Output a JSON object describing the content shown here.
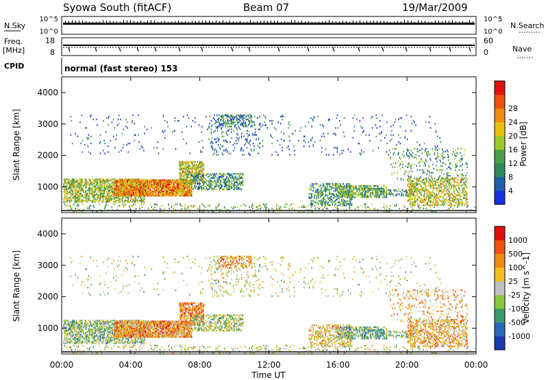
{
  "header": {
    "station": "Syowa South (fitACF)",
    "beam": "Beam 07",
    "date": "19/Mar/2009"
  },
  "top_panels": {
    "nsky_label": "N.Sky",
    "nsearch_label": "N.Search",
    "freq_label_line1": "Freq.",
    "freq_label_line2": "[MHz]",
    "nave_label": "Nave",
    "cpid_label": "CPID",
    "cpid_text": "normal (fast stereo) 153",
    "noise_ticks_left": [
      "10^5",
      "10^0"
    ],
    "noise_ticks_right": [
      "10^5",
      "10^0"
    ],
    "freq_ticks": [
      "18",
      "8"
    ],
    "nave_ticks": [
      "60",
      "0"
    ]
  },
  "chart_data": [
    {
      "type": "heatmap",
      "parameter": "Power",
      "ylabel": "Slant Range [km]",
      "xlabel": "Time UT",
      "x_ticks": [
        "00:00",
        "04:00",
        "08:00",
        "12:00",
        "16:00",
        "20:00",
        "00:00"
      ],
      "x_range_hours": [
        0,
        24
      ],
      "y_ticks": [
        1000,
        2000,
        3000,
        4000
      ],
      "y_range_km": [
        180,
        4500
      ],
      "colorbar": {
        "label": "Power [dB]",
        "ticks": [
          "4",
          "8",
          "12",
          "16",
          "20",
          "24",
          "28"
        ],
        "colors": [
          "#1430e0",
          "#1f5fa8",
          "#2e8a5a",
          "#4aa04a",
          "#9ccc28",
          "#e8c010",
          "#f08c10",
          "#f05010",
          "#e01010"
        ]
      },
      "echo_regions": [
        {
          "t": [
            0.1,
            4.8
          ],
          "r": [
            500,
            1250
          ],
          "dens": 0.55,
          "bias": 0.5
        },
        {
          "t": [
            3.0,
            7.5
          ],
          "r": [
            700,
            1200
          ],
          "dens": 0.85,
          "bias": 0.75
        },
        {
          "t": [
            6.8,
            8.2
          ],
          "r": [
            1100,
            1800
          ],
          "dens": 0.6,
          "bias": 0.55
        },
        {
          "t": [
            7.5,
            10.5
          ],
          "r": [
            900,
            1400
          ],
          "dens": 0.45,
          "bias": 0.3
        },
        {
          "t": [
            8.5,
            11.5
          ],
          "r": [
            2000,
            3300
          ],
          "dens": 0.08,
          "bias": 0.15
        },
        {
          "t": [
            9.0,
            11.0
          ],
          "r": [
            2900,
            3300
          ],
          "dens": 0.35,
          "bias": 0.25
        },
        {
          "t": [
            0.5,
            22.0
          ],
          "r": [
            2000,
            3300
          ],
          "dens": 0.025,
          "bias": 0.1
        },
        {
          "t": [
            14.3,
            16.8
          ],
          "r": [
            400,
            1100
          ],
          "dens": 0.35,
          "bias": 0.3
        },
        {
          "t": [
            16.0,
            18.8
          ],
          "r": [
            650,
            1050
          ],
          "dens": 0.55,
          "bias": 0.4
        },
        {
          "t": [
            18.8,
            20.5
          ],
          "r": [
            700,
            900
          ],
          "dens": 0.35,
          "bias": 0.3
        },
        {
          "t": [
            19.0,
            23.5
          ],
          "r": [
            1200,
            2200
          ],
          "dens": 0.12,
          "bias": 0.3
        },
        {
          "t": [
            20.0,
            23.5
          ],
          "r": [
            400,
            1300
          ],
          "dens": 0.4,
          "bias": 0.55
        },
        {
          "t": [
            0.0,
            24.0
          ],
          "r": [
            200,
            450
          ],
          "dens": 0.12,
          "bias": 0.4
        }
      ]
    },
    {
      "type": "heatmap",
      "parameter": "Velocity",
      "ylabel": "Slant Range [km]",
      "xlabel": "Time UT",
      "x_ticks": [
        "00:00",
        "04:00",
        "08:00",
        "12:00",
        "16:00",
        "20:00",
        "00:00"
      ],
      "x_range_hours": [
        0,
        24
      ],
      "y_ticks": [
        1000,
        2000,
        3000,
        4000
      ],
      "y_range_km": [
        180,
        4500
      ],
      "colorbar": {
        "label": "Velocity [m s^-1]",
        "ticks": [
          "1000",
          "500",
          "100",
          "25",
          "-25",
          "-100",
          "-500",
          "-1000"
        ],
        "colors": [
          "#1a3ab0",
          "#2a6ab8",
          "#3a9a6a",
          "#88c840",
          "#c0c0c0",
          "#f0c020",
          "#f08c10",
          "#f05010",
          "#e01010"
        ]
      },
      "echo_regions": [
        {
          "t": [
            0.1,
            4.8
          ],
          "r": [
            500,
            1250
          ],
          "dens": 0.55,
          "bias": 0.4
        },
        {
          "t": [
            3.0,
            7.5
          ],
          "r": [
            700,
            1200
          ],
          "dens": 0.85,
          "bias": 0.7
        },
        {
          "t": [
            6.8,
            8.2
          ],
          "r": [
            1100,
            1800
          ],
          "dens": 0.6,
          "bias": 0.75
        },
        {
          "t": [
            7.5,
            10.5
          ],
          "r": [
            900,
            1400
          ],
          "dens": 0.45,
          "bias": 0.45
        },
        {
          "t": [
            8.5,
            11.5
          ],
          "r": [
            2000,
            3300
          ],
          "dens": 0.08,
          "bias": 0.5
        },
        {
          "t": [
            9.0,
            11.0
          ],
          "r": [
            2900,
            3300
          ],
          "dens": 0.35,
          "bias": 0.7
        },
        {
          "t": [
            0.5,
            22.0
          ],
          "r": [
            2000,
            3300
          ],
          "dens": 0.025,
          "bias": 0.5
        },
        {
          "t": [
            14.3,
            16.8
          ],
          "r": [
            400,
            1100
          ],
          "dens": 0.35,
          "bias": 0.6
        },
        {
          "t": [
            16.0,
            18.8
          ],
          "r": [
            650,
            1050
          ],
          "dens": 0.55,
          "bias": 0.35
        },
        {
          "t": [
            18.8,
            20.5
          ],
          "r": [
            700,
            900
          ],
          "dens": 0.35,
          "bias": 0.4
        },
        {
          "t": [
            19.0,
            23.5
          ],
          "r": [
            1200,
            2200
          ],
          "dens": 0.12,
          "bias": 0.65
        },
        {
          "t": [
            20.0,
            23.5
          ],
          "r": [
            400,
            1300
          ],
          "dens": 0.4,
          "bias": 0.65
        },
        {
          "t": [
            0.0,
            24.0
          ],
          "r": [
            200,
            450
          ],
          "dens": 0.12,
          "bias": 0.5
        }
      ]
    }
  ]
}
